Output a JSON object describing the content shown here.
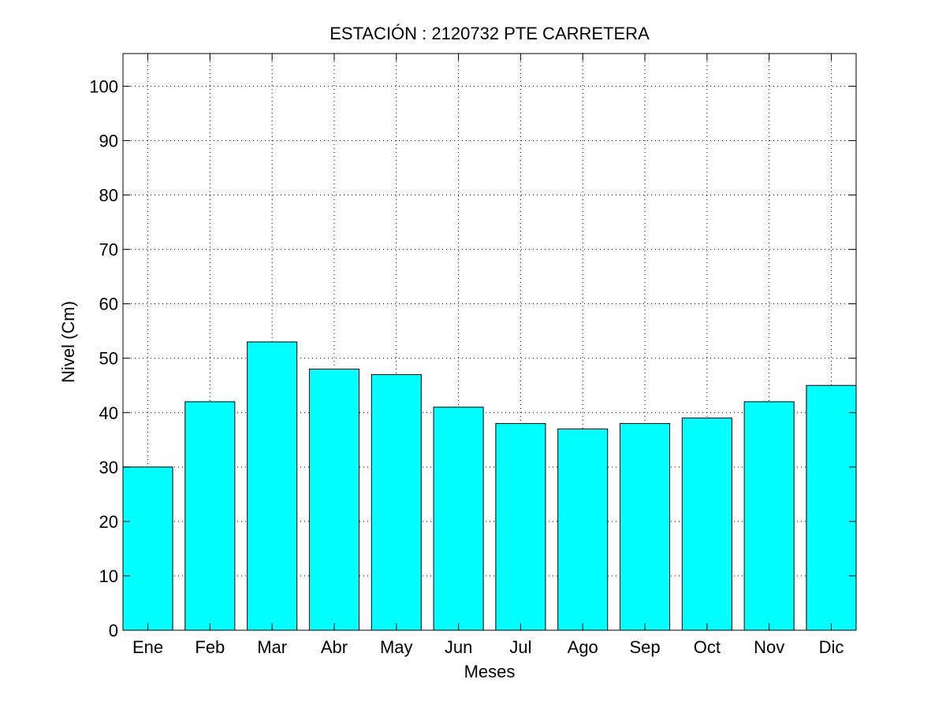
{
  "chart_data": {
    "type": "bar",
    "title": "ESTACIÓN :  2120732  PTE CARRETERA",
    "xlabel": "Meses",
    "ylabel": "Nivel (Cm)",
    "categories": [
      "Ene",
      "Feb",
      "Mar",
      "Abr",
      "May",
      "Jun",
      "Jul",
      "Ago",
      "Sep",
      "Oct",
      "Nov",
      "Dic"
    ],
    "values": [
      30,
      42,
      53,
      48,
      47,
      41,
      38,
      37,
      38,
      39,
      42,
      45
    ],
    "ylim": [
      0,
      106
    ],
    "yticks": [
      0,
      10,
      20,
      30,
      40,
      50,
      60,
      70,
      80,
      90,
      100
    ],
    "grid": true,
    "bar_color": "#00ffff",
    "edge_color": "#000000"
  }
}
